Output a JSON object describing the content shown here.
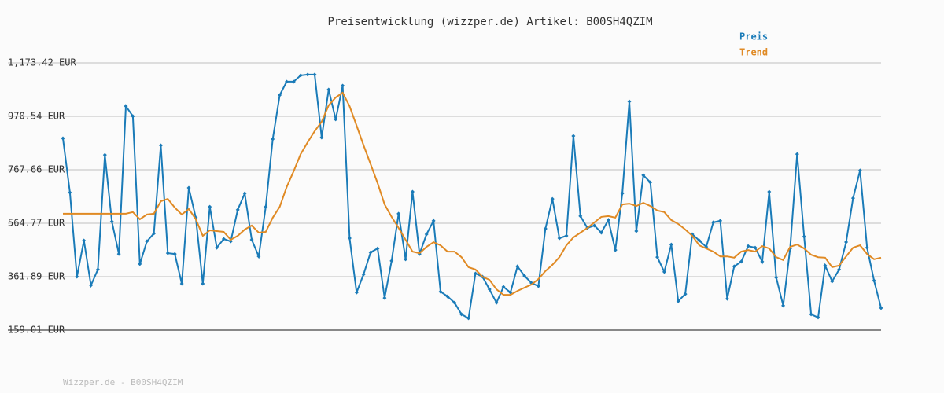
{
  "chart_data": {
    "type": "line",
    "title": "Preisentwicklung (wizzper.de) Artikel: B00SH4QZIM",
    "footer": "Wizzper.de - B00SH4QZIM",
    "ylim": [
      159.01,
      1173.42
    ],
    "yticks": [
      {
        "value": 159.01,
        "label": "159.01 EUR"
      },
      {
        "value": 361.89,
        "label": "361.89 EUR"
      },
      {
        "value": 564.77,
        "label": "564.77 EUR"
      },
      {
        "value": 767.66,
        "label": "767.66 EUR"
      },
      {
        "value": 970.54,
        "label": "970.54 EUR"
      },
      {
        "value": 1173.42,
        "label": "1,173.42 EUR"
      }
    ],
    "grid": true,
    "legend": "top-right",
    "series": [
      {
        "name": "Preis",
        "color": "#1a7bb8",
        "markers": true,
        "values": [
          887,
          681,
          362,
          499,
          329,
          389,
          824,
          571,
          448,
          1009,
          971,
          410,
          496,
          526,
          860,
          451,
          448,
          335,
          699,
          586,
          335,
          627,
          472,
          505,
          496,
          616,
          678,
          502,
          439,
          627,
          884,
          1051,
          1102,
          1102,
          1126,
          1129,
          1129,
          890,
          1072,
          959,
          1087,
          508,
          302,
          371,
          454,
          469,
          281,
          422,
          601,
          428,
          684,
          448,
          523,
          574,
          305,
          287,
          263,
          219,
          204,
          374,
          362,
          314,
          263,
          323,
          302,
          401,
          365,
          338,
          326,
          544,
          657,
          508,
          517,
          896,
          592,
          547,
          556,
          529,
          577,
          463,
          678,
          1027,
          535,
          747,
          720,
          436,
          380,
          484,
          269,
          296,
          523,
          499,
          475,
          568,
          574,
          278,
          401,
          419,
          478,
          472,
          419,
          684,
          359,
          252,
          469,
          827,
          514,
          219,
          207,
          404,
          344,
          389,
          493,
          660,
          765,
          472,
          347,
          243
        ]
      },
      {
        "name": "Trend",
        "color": "#e08a24",
        "markers": false,
        "values": [
          601,
          601,
          601,
          601,
          601,
          601,
          601,
          601,
          601,
          601,
          607,
          580,
          598,
          601,
          648,
          657,
          624,
          598,
          619,
          580,
          517,
          538,
          535,
          532,
          502,
          517,
          541,
          556,
          529,
          532,
          586,
          627,
          702,
          762,
          827,
          872,
          914,
          950,
          1012,
          1042,
          1060,
          1009,
          935,
          860,
          789,
          717,
          636,
          589,
          547,
          502,
          457,
          451,
          475,
          493,
          481,
          457,
          457,
          436,
          398,
          389,
          362,
          350,
          314,
          293,
          293,
          308,
          320,
          332,
          353,
          383,
          407,
          436,
          481,
          511,
          529,
          547,
          568,
          589,
          592,
          586,
          636,
          639,
          630,
          642,
          630,
          613,
          607,
          577,
          562,
          541,
          517,
          481,
          469,
          457,
          439,
          439,
          434,
          457,
          463,
          457,
          478,
          469,
          436,
          425,
          475,
          484,
          469,
          445,
          436,
          434,
          398,
          404,
          439,
          472,
          481,
          448,
          428,
          434
        ]
      }
    ]
  }
}
